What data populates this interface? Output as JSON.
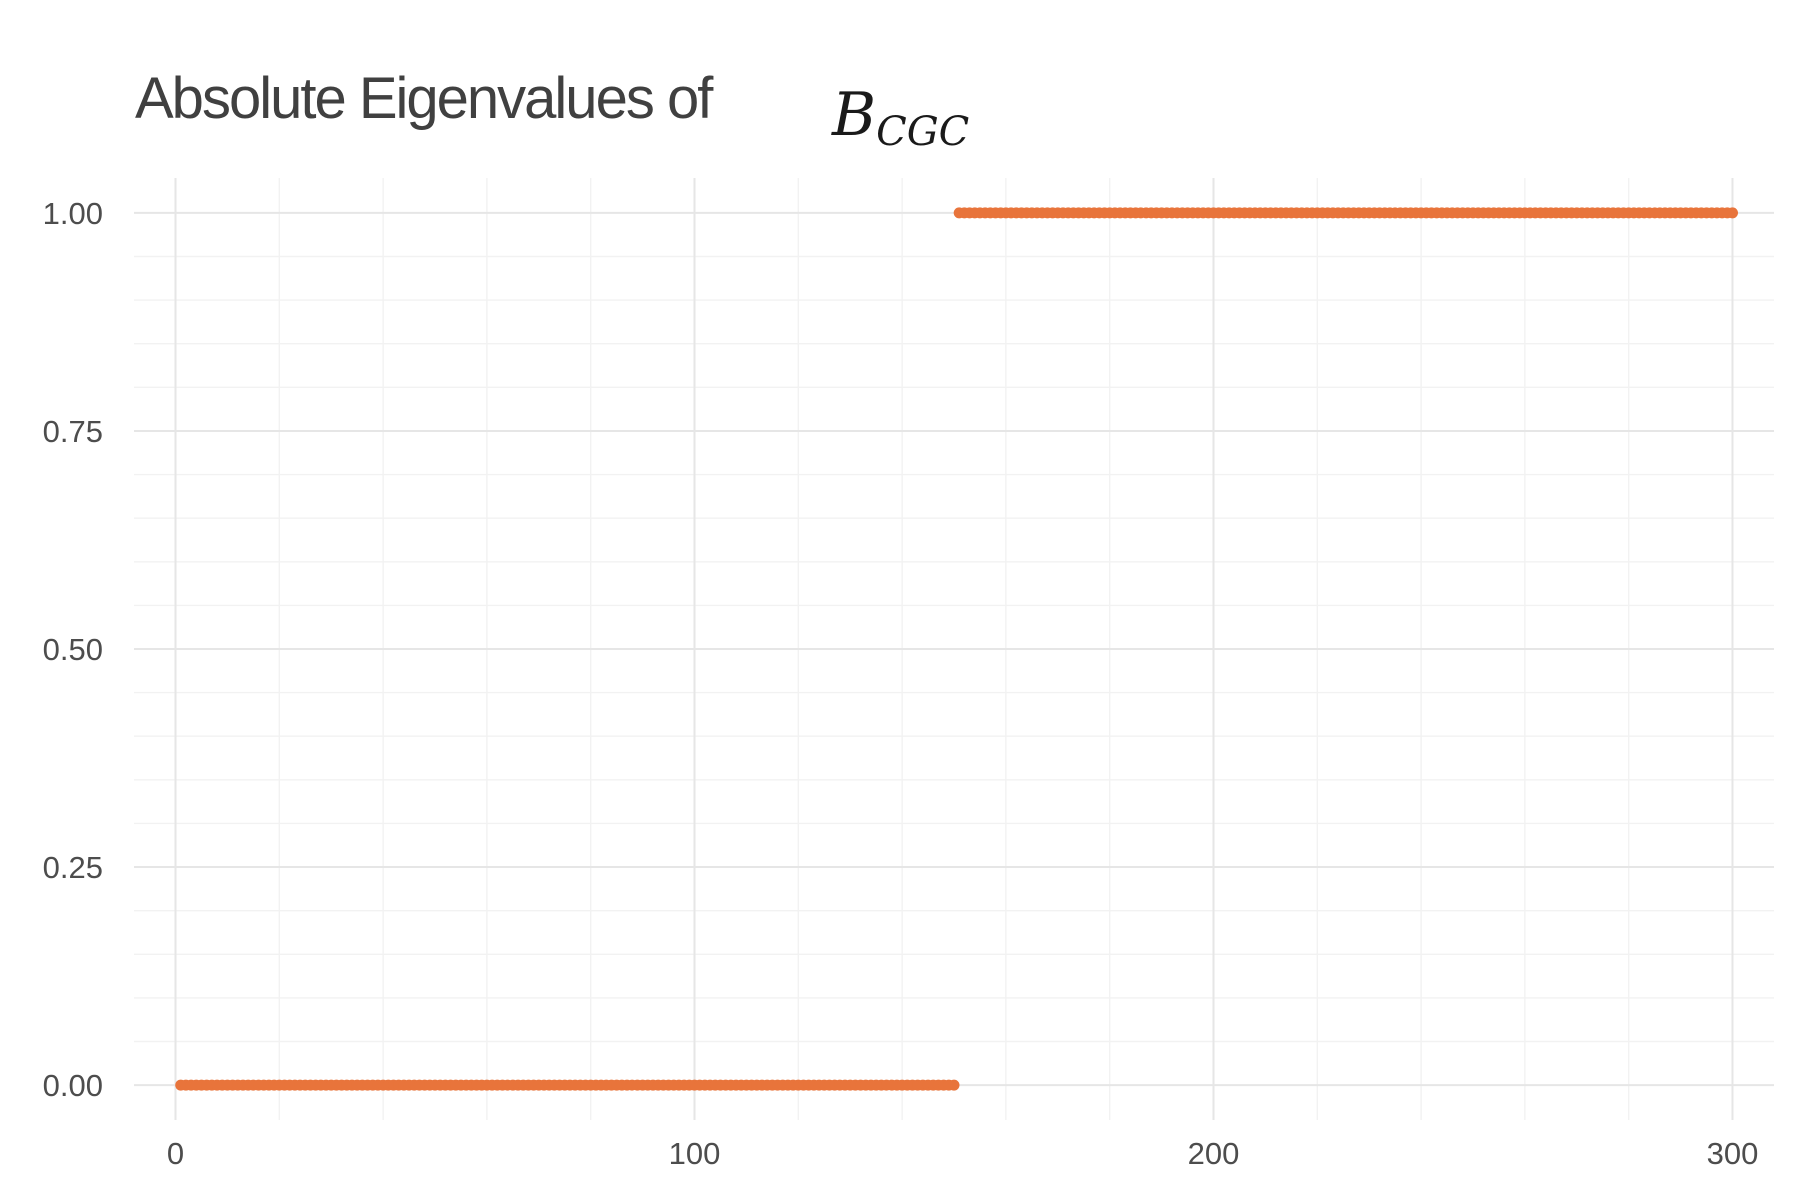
{
  "chart_data": {
    "type": "scatter",
    "title": "Absolute Eigenvalues of",
    "title_math": {
      "base": "B",
      "subscript": "CGC"
    },
    "xlabel": "",
    "ylabel": "",
    "xlim": [
      -8,
      308
    ],
    "ylim": [
      -0.04,
      1.04
    ],
    "x_ticks": [
      0,
      100,
      200,
      300
    ],
    "x_tick_labels": [
      "0",
      "100",
      "200",
      "300"
    ],
    "x_minor_ticks": [
      20,
      40,
      60,
      80,
      120,
      140,
      160,
      180,
      220,
      240,
      260,
      280
    ],
    "y_ticks": [
      0,
      0.25,
      0.5,
      0.75,
      1.0
    ],
    "y_tick_labels": [
      "0.00",
      "0.25",
      "0.50",
      "0.75",
      "1.00"
    ],
    "y_minor_ticks": [
      0.05,
      0.1,
      0.15,
      0.2,
      0.3,
      0.35,
      0.4,
      0.45,
      0.55,
      0.6,
      0.65,
      0.7,
      0.8,
      0.85,
      0.9,
      0.95
    ],
    "grid": true,
    "legend": "none",
    "point_color": "#E8743B",
    "series": [
      {
        "x_start": 1,
        "x_end": 300,
        "description_rule": "0 for x <= 150, 1 for x > 150",
        "y_step_at": 150,
        "y_low": 0,
        "y_high": 1
      }
    ]
  }
}
